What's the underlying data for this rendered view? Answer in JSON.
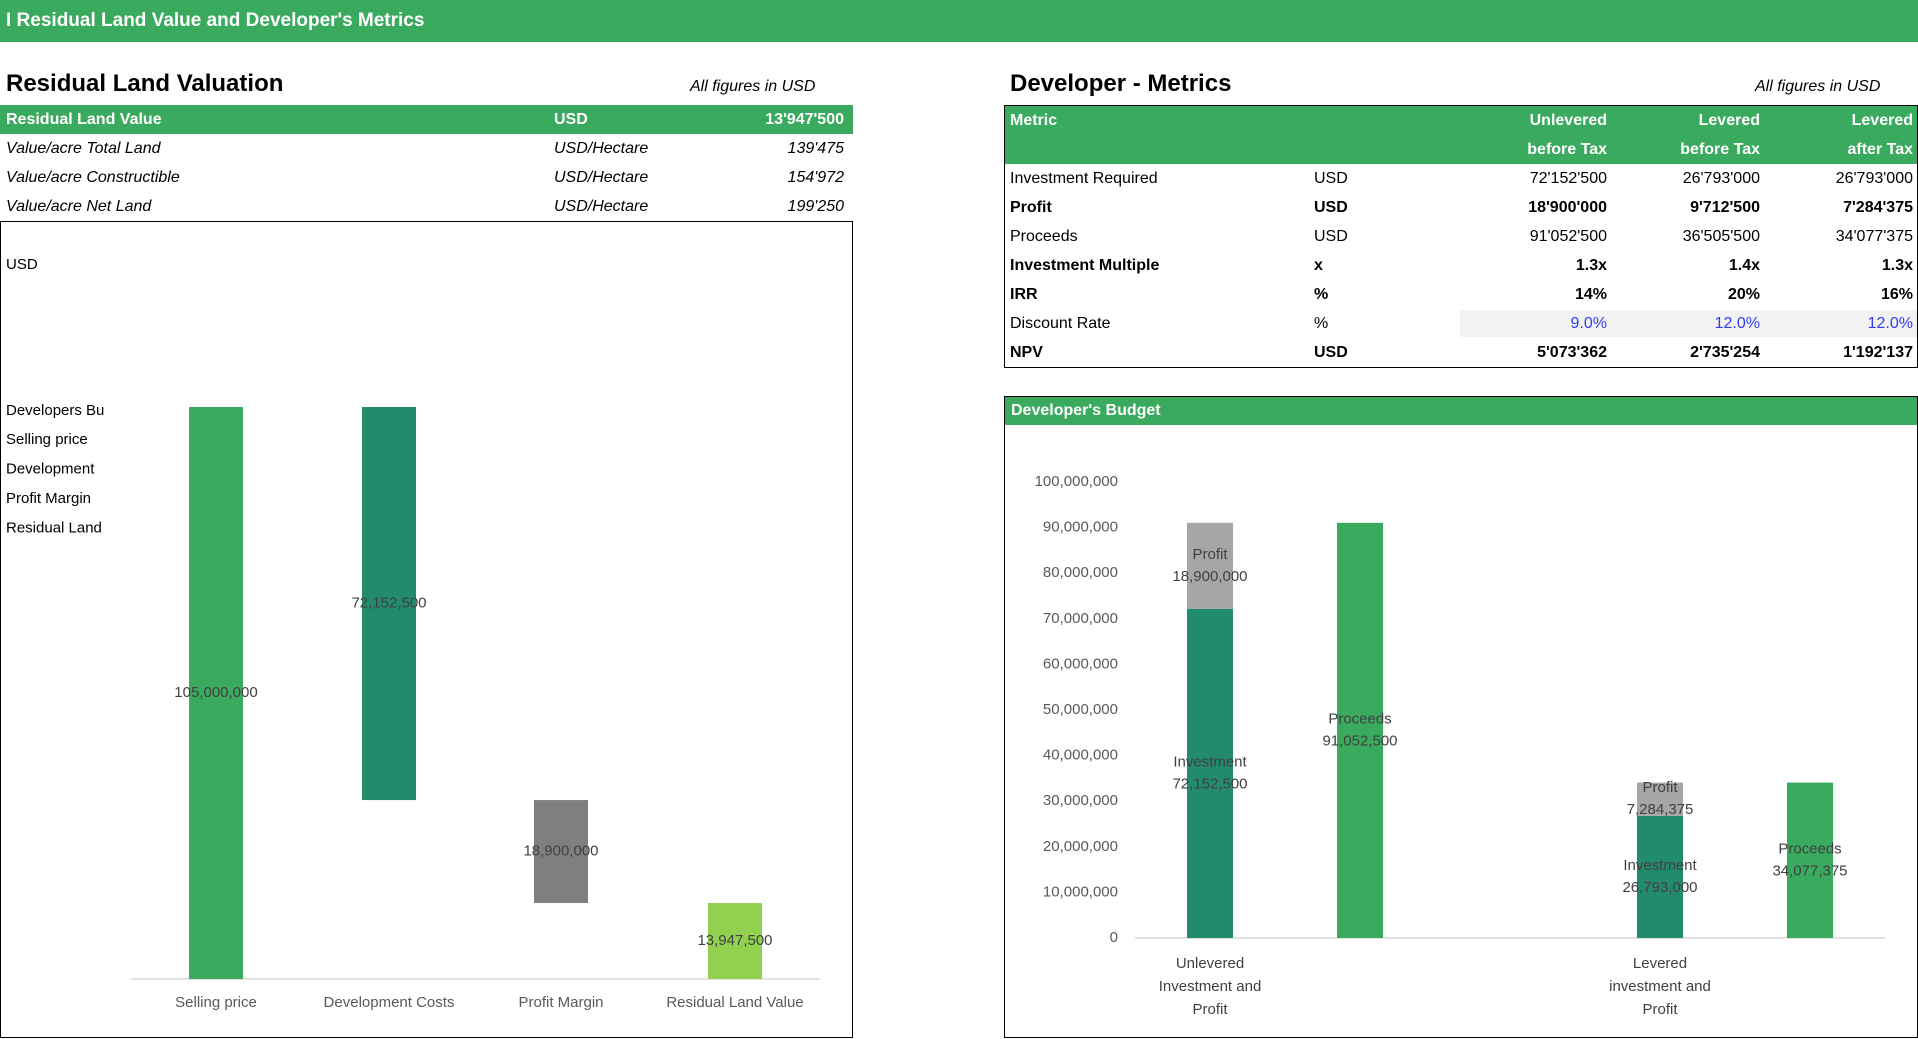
{
  "header": {
    "title": "I Residual Land Value and Developer's Metrics"
  },
  "valuation": {
    "title": "Residual Land Valuation",
    "note": "All figures in USD",
    "rows": [
      {
        "cells": [
          "Residual Land Value",
          "USD",
          "13'947'500"
        ],
        "highlight": true
      },
      {
        "cells": [
          "Value/acre Total Land",
          "USD/Hectare",
          "139'475"
        ],
        "highlight": false
      },
      {
        "cells": [
          "Value/acre Constructible",
          "USD/Hectare",
          "154'972"
        ],
        "highlight": false
      },
      {
        "cells": [
          "Value/acre Net Land",
          "USD/Hectare",
          "199'250"
        ],
        "highlight": false
      }
    ]
  },
  "metrics": {
    "title": "Developer - Metrics",
    "note": "All figures in USD",
    "header": {
      "metric": "Metric",
      "columns": [
        "Unlevered\nbefore Tax",
        "Levered\nbefore Tax",
        "Levered\nafter Tax"
      ]
    },
    "rows": [
      {
        "cells": [
          "Investment Required",
          "USD",
          "72'152'500",
          "26'793'000",
          "26'793'000"
        ],
        "bold": false,
        "input": false
      },
      {
        "cells": [
          "Profit",
          "USD",
          "18'900'000",
          "9'712'500",
          "7'284'375"
        ],
        "bold": true,
        "input": false
      },
      {
        "cells": [
          "Proceeds",
          "USD",
          "91'052'500",
          "36'505'500",
          "34'077'375"
        ],
        "bold": false,
        "input": false
      },
      {
        "cells": [
          "Investment Multiple",
          "x",
          "1.3x",
          "1.4x",
          "1.3x"
        ],
        "bold": true,
        "input": false
      },
      {
        "cells": [
          "IRR",
          "%",
          "14%",
          "20%",
          "16%"
        ],
        "bold": true,
        "input": false
      },
      {
        "cells": [
          "Discount Rate",
          "%",
          "9.0%",
          "12.0%",
          "12.0%"
        ],
        "bold": false,
        "input": true
      },
      {
        "cells": [
          "NPV",
          "USD",
          "5'073'362",
          "2'735'254",
          "1'192'137"
        ],
        "bold": true,
        "input": false
      }
    ]
  },
  "chart_data": [
    {
      "type": "waterfall",
      "unit_label": "USD",
      "legend_title": "Developers Bu",
      "legend": [
        "Selling price",
        "Development",
        "Profit Margin",
        "Residual Land"
      ],
      "categories": [
        "Selling price",
        "Development Costs",
        "Profit Margin",
        "Residual Land Value"
      ],
      "values": [
        105000000,
        -72152500,
        -18900000,
        13947500
      ],
      "value_labels": [
        "105,000,000",
        "72,152,500",
        "18,900,000",
        "13,947,500"
      ],
      "colors": [
        "#3aaa5f",
        "#228b6d",
        "#7f7f7f",
        "#92d050"
      ]
    },
    {
      "type": "stacked_bar",
      "title": "Developer's Budget",
      "categories": [
        "Unlevered Investment and Profit",
        null,
        null,
        "Levered investment and Profit",
        null
      ],
      "series": [
        {
          "name": "Investment",
          "color": "#228b6d",
          "values": [
            72152500,
            null,
            null,
            26793000,
            null
          ],
          "value_labels": [
            "72,152,500",
            null,
            null,
            "26,793,000",
            null
          ]
        },
        {
          "name": "Profit",
          "color": "#a6a6a6",
          "values": [
            18900000,
            null,
            null,
            7284375,
            null
          ],
          "value_labels": [
            "18,900,000",
            null,
            null,
            "7,284,375",
            null
          ]
        },
        {
          "name": "Proceeds",
          "color": "#3aaa5f",
          "values": [
            null,
            91052500,
            null,
            null,
            34077375
          ],
          "value_labels": [
            null,
            "91,052,500",
            null,
            null,
            "34,077,375"
          ]
        }
      ],
      "ylim": [
        0,
        100000000
      ],
      "yticks": [
        0,
        {
          "value": 10000000,
          "label": "10,000,000"
        },
        {
          "value": 20000000,
          "label": "20,000,000"
        },
        {
          "value": 30000000,
          "label": "30,000,000"
        },
        {
          "value": 40000000,
          "label": "40,000,000"
        },
        {
          "value": 50000000,
          "label": "50,000,000"
        },
        {
          "value": 60000000,
          "label": "60,000,000"
        },
        {
          "value": 70000000,
          "label": "70,000,000"
        },
        {
          "value": 80000000,
          "label": "80,000,000"
        },
        {
          "value": 90000000,
          "label": "90,000,000"
        },
        {
          "value": 100000000,
          "label": "100,000,000"
        }
      ]
    }
  ]
}
